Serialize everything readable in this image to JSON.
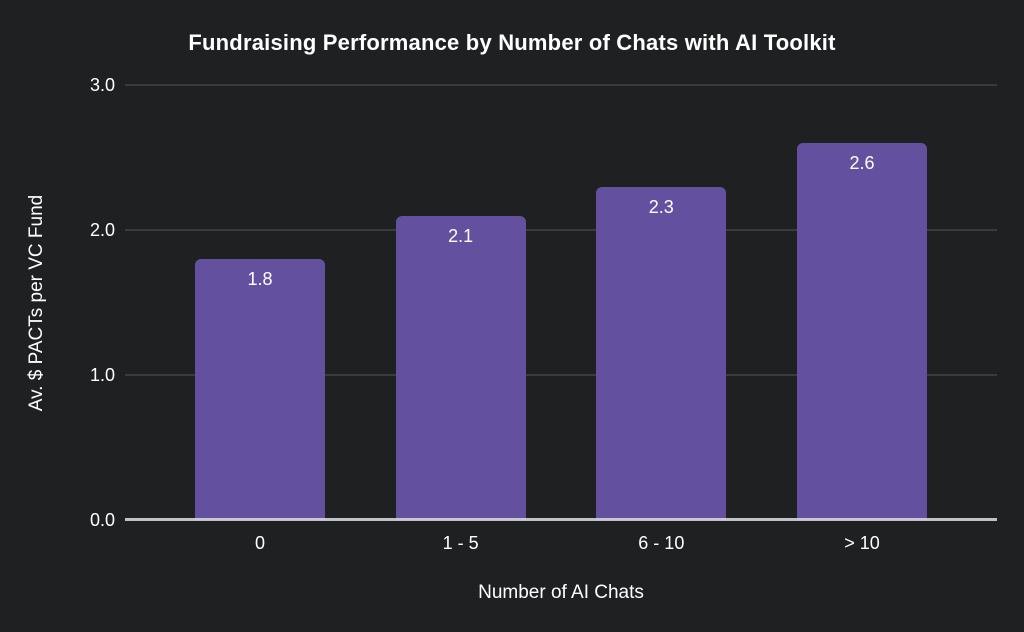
{
  "title": "Fundraising Performance by Number of Chats with AI Toolkit",
  "chart_data": {
    "type": "bar",
    "title": "Fundraising Performance by Number of Chats with AI Toolkit",
    "categories": [
      "0",
      "1 - 5",
      "6 - 10",
      "> 10"
    ],
    "values": [
      1.8,
      2.1,
      2.3,
      2.6
    ],
    "value_labels": [
      "1.8",
      "2.1",
      "2.3",
      "2.6"
    ],
    "xlabel": "Number of AI Chats",
    "ylabel": "Av. $ PACTs per VC Fund",
    "ylim": [
      0,
      3
    ],
    "yticks": [
      {
        "value": 0,
        "label": "0.0"
      },
      {
        "value": 1,
        "label": "1.0"
      },
      {
        "value": 2,
        "label": "2.0"
      },
      {
        "value": 3,
        "label": "3.0"
      }
    ],
    "grid": "horizontal-only",
    "legend": "none",
    "colors": {
      "background": "#1f2021",
      "bar": "#6351a0",
      "gridline": "#3a3b3d",
      "axis_line": "#d8d8de",
      "text": "#ffffff"
    }
  }
}
